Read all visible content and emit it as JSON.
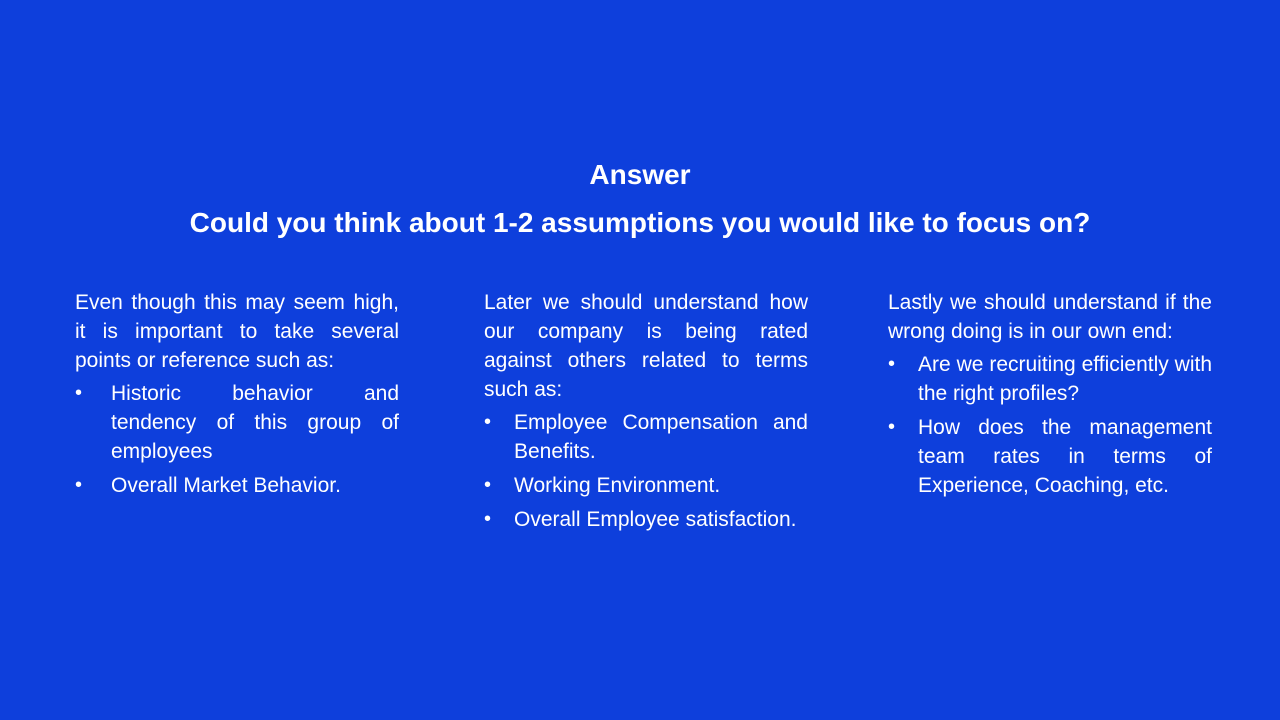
{
  "slide": {
    "title": "Answer",
    "question": "Could you think about 1-2 assumptions you would like to focus on?",
    "columns": [
      {
        "intro": "Even though this may seem high, it is important to take several points or reference such as:",
        "bullets": [
          "Historic behavior and tendency of this group of employees",
          "Overall Market Behavior."
        ]
      },
      {
        "intro": "Later we should understand how our company is being rated against others related to terms such as:",
        "bullets": [
          "Employee Compensation and Benefits.",
          "Working Environment.",
          "Overall Employee satisfaction."
        ]
      },
      {
        "intro": "Lastly we should understand if the wrong doing is in our own end:",
        "bullets": [
          "Are we recruiting efficiently with the right profiles?",
          "How does the management team rates in terms of Experience, Coaching, etc."
        ]
      }
    ],
    "bullet_glyph": "•"
  }
}
